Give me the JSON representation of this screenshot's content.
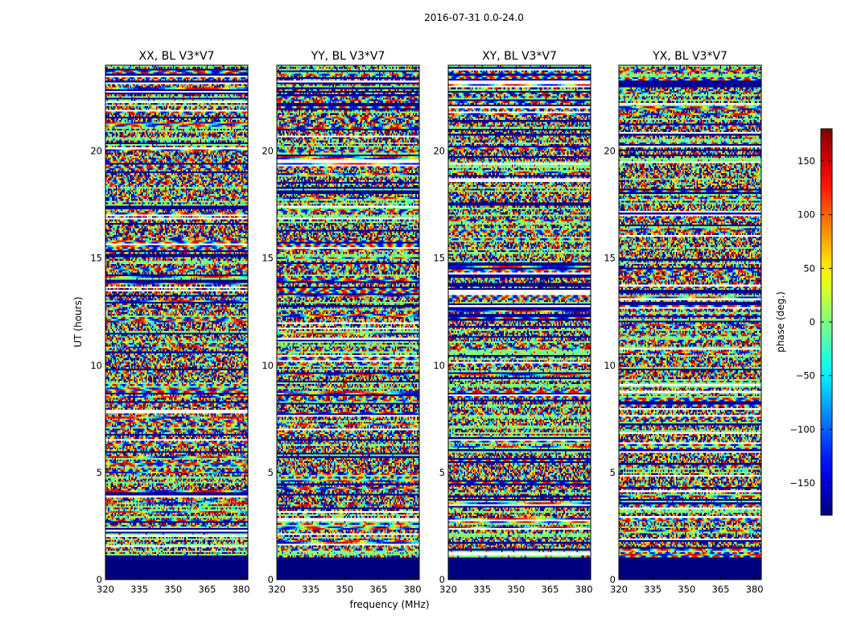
{
  "chart_data": {
    "type": "heatmap",
    "suptitle": "2016-07-31 0.0-24.0",
    "xlabel": "frequency (MHz)",
    "ylabel": "UT (hours)",
    "xlim": [
      320,
      383
    ],
    "ylim": [
      0,
      24
    ],
    "xticks": [
      320,
      335,
      350,
      365,
      380
    ],
    "yticks": [
      0,
      5,
      10,
      15,
      20
    ],
    "colormap": "jet",
    "colorbar": {
      "label": "phase (deg.)",
      "range": [
        -180,
        180
      ],
      "ticks": [
        -150,
        -100,
        -50,
        0,
        50,
        100,
        150
      ],
      "tick_labels": [
        "−150",
        "−100",
        "−50",
        "0",
        "50",
        "100",
        "150"
      ]
    },
    "no_data_below_ut": 1.0,
    "panels": [
      {
        "title": "XX, BL V3*V7",
        "seed": 11
      },
      {
        "title": "YY, BL V3*V7",
        "seed": 23
      },
      {
        "title": "XY, BL V3*V7",
        "seed": 37
      },
      {
        "title": "YX, BL V3*V7",
        "seed": 53
      }
    ],
    "description_values": "Phase in degrees as a function of frequency and UT; cells are a noisy mix of blue/cyan/green/yellow/red with fringe patterns and dark-blue (no-data) rows."
  },
  "colors": {
    "jet_min": "#00007f",
    "jet_max": "#7f0000",
    "axis": "#000000"
  }
}
